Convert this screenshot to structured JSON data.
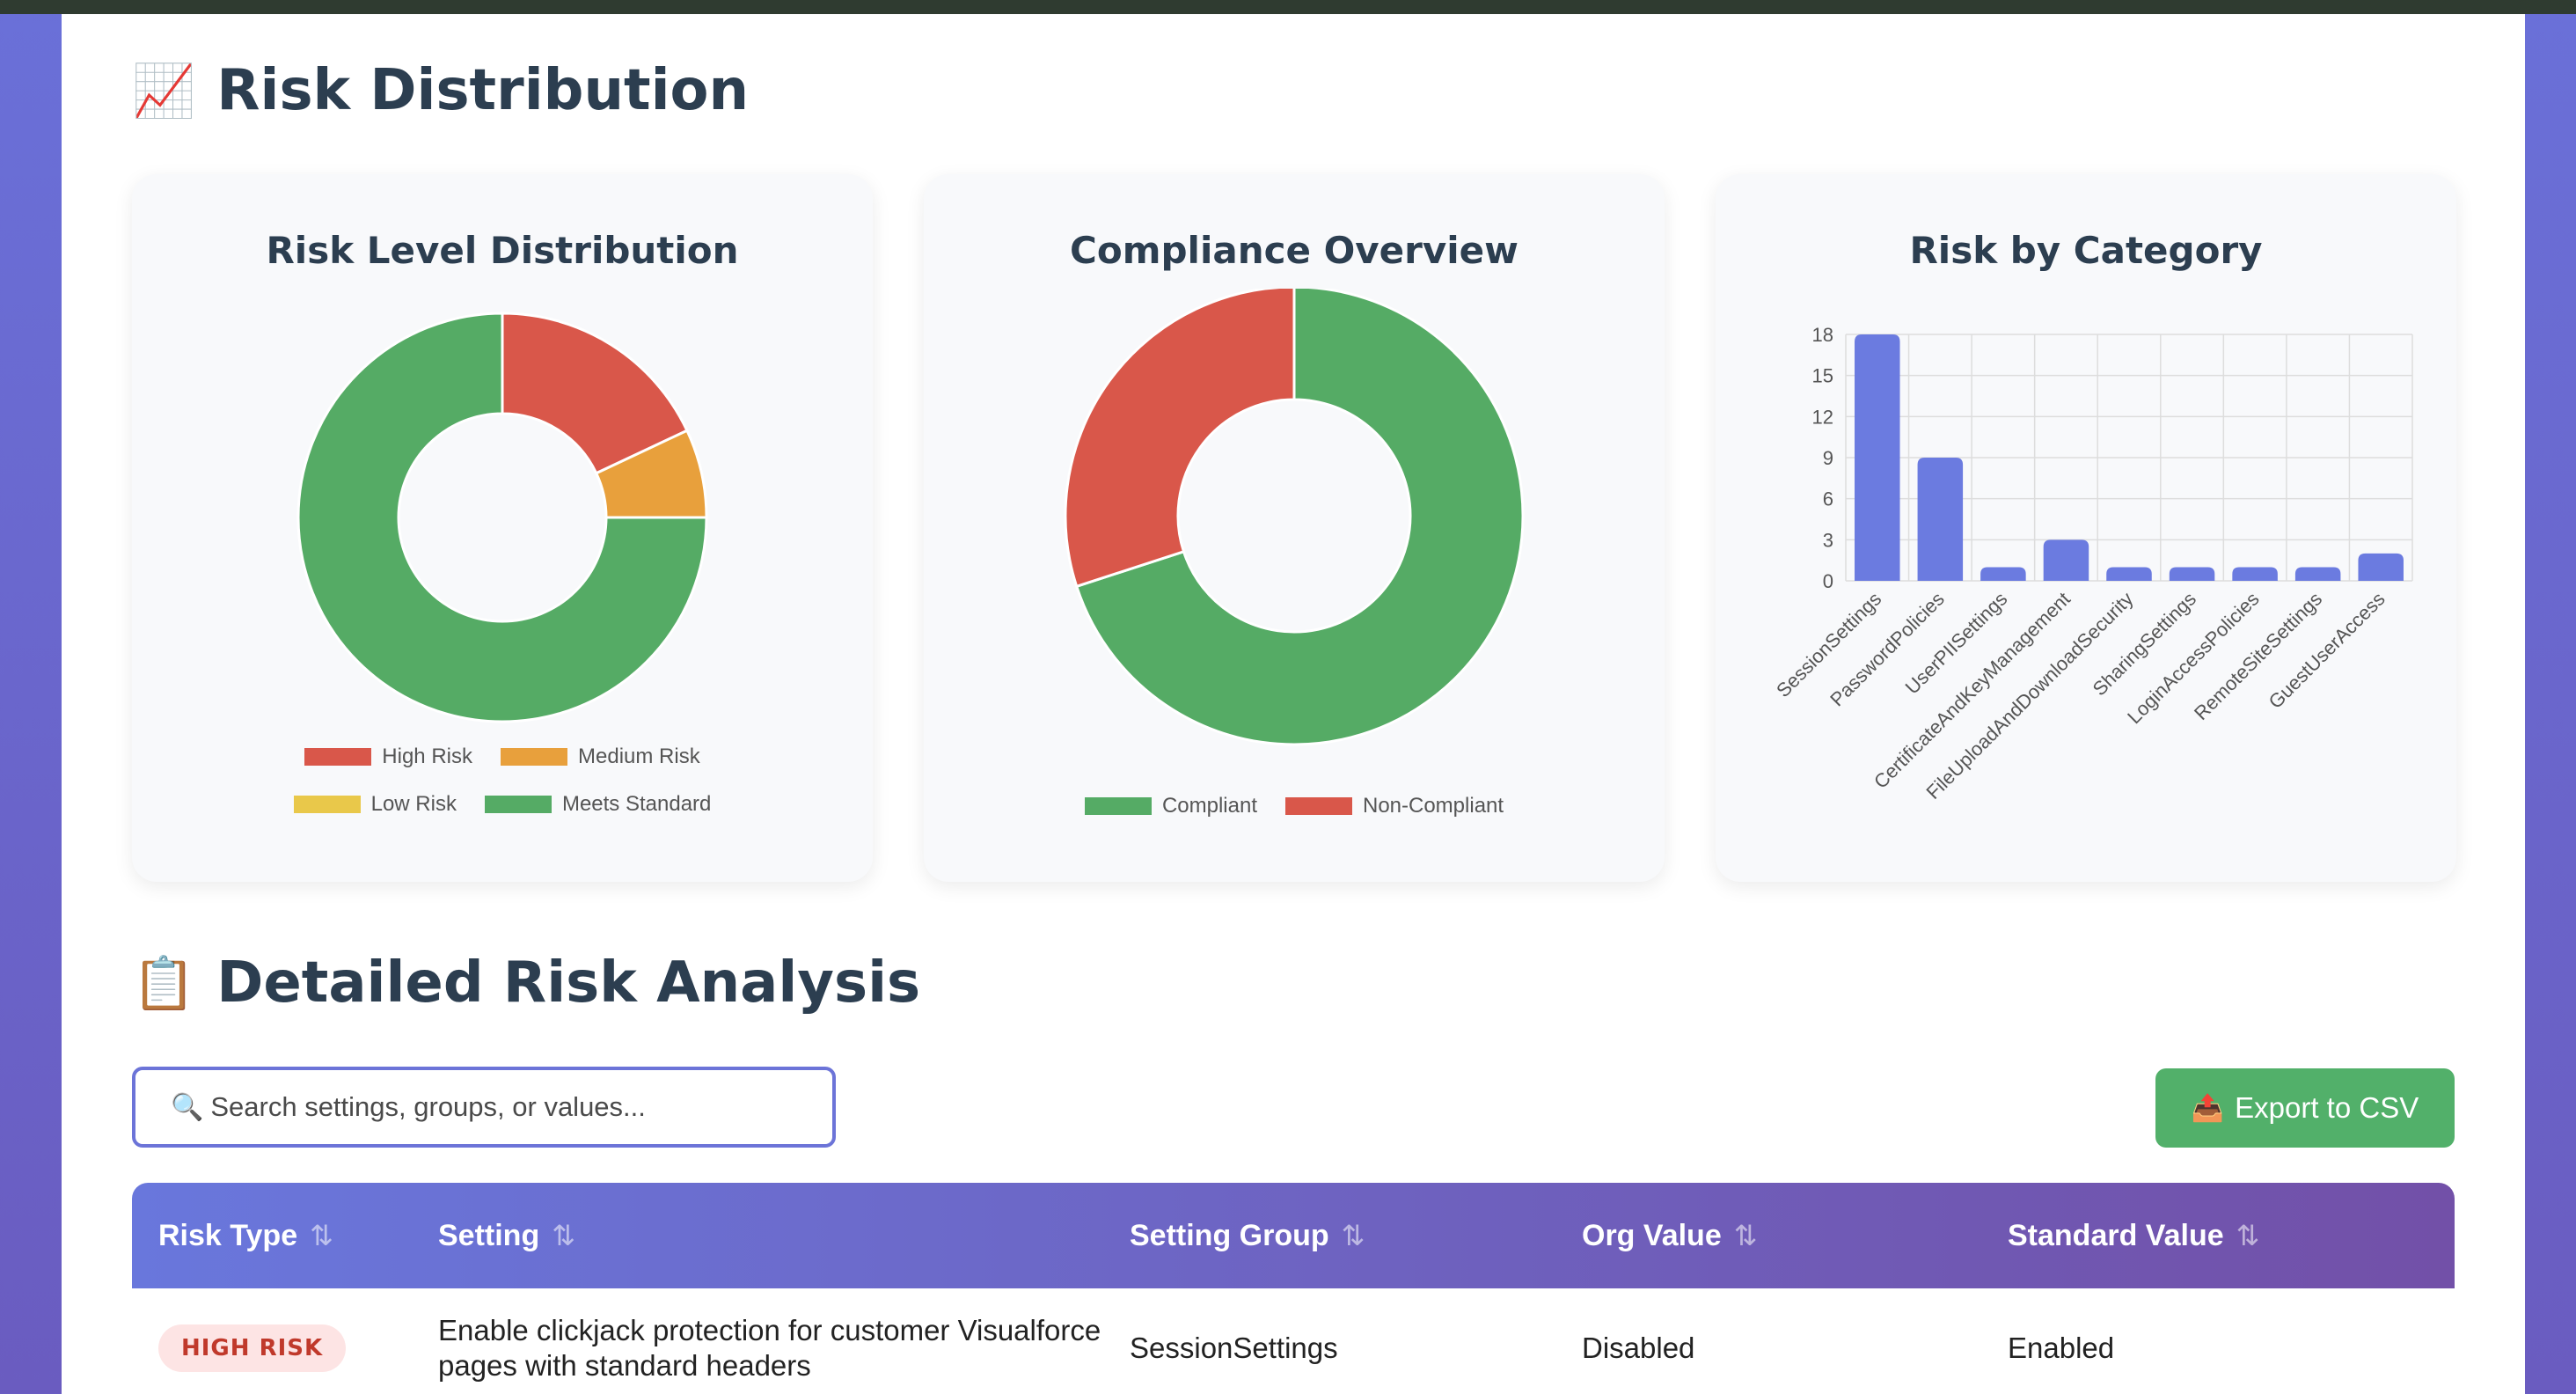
{
  "sections": {
    "distribution": {
      "emoji": "📈",
      "title": "Risk Distribution"
    },
    "analysis": {
      "emoji": "📋",
      "title": "Detailed Risk Analysis"
    }
  },
  "cards": {
    "risk_level": {
      "title": "Risk Level Distribution"
    },
    "compliance": {
      "title": "Compliance Overview"
    },
    "category": {
      "title": "Risk by Category"
    }
  },
  "chart_data": [
    {
      "type": "pie",
      "title": "Risk Level Distribution",
      "categories": [
        "High Risk",
        "Medium Risk",
        "Low Risk",
        "Meets Standard"
      ],
      "values": [
        18,
        7,
        0,
        75
      ],
      "colors": [
        "#d9574a",
        "#e8a03c",
        "#e9c84a",
        "#55ab65"
      ],
      "legend": "bottom"
    },
    {
      "type": "pie",
      "title": "Compliance Overview",
      "categories": [
        "Compliant",
        "Non-Compliant"
      ],
      "values": [
        70,
        30
      ],
      "colors": [
        "#55ab65",
        "#d9574a"
      ],
      "legend": "bottom"
    },
    {
      "type": "bar",
      "title": "Risk by Category",
      "categories": [
        "SessionSettings",
        "PasswordPolicies",
        "UserPIISettings",
        "CertificateAndKeyManagement",
        "FileUploadAndDownloadSecurity",
        "SharingSettings",
        "LoginAccessPolicies",
        "RemoteSiteSettings",
        "GuestUserAccess"
      ],
      "values": [
        18,
        9,
        1,
        3,
        1,
        1,
        1,
        1,
        2
      ],
      "yticks": [
        "0",
        "3",
        "6",
        "9",
        "12",
        "15",
        "18"
      ],
      "ylim": [
        0,
        18
      ],
      "grid": true,
      "color": "#6b7be0"
    }
  ],
  "search": {
    "icon": "🔍",
    "placeholder": "Search settings, groups, or values..."
  },
  "export": {
    "icon": "📤",
    "label": "Export to CSV"
  },
  "table": {
    "headers": [
      "Risk Type",
      "Setting",
      "Setting Group",
      "Org Value",
      "Standard Value"
    ],
    "sort_glyph": "⇅",
    "rows": [
      {
        "risk_type": "HIGH RISK",
        "setting": "Enable clickjack protection for customer Visualforce pages with standard headers",
        "group": "SessionSettings",
        "org_value": "Disabled",
        "standard_value": "Enabled"
      }
    ]
  }
}
